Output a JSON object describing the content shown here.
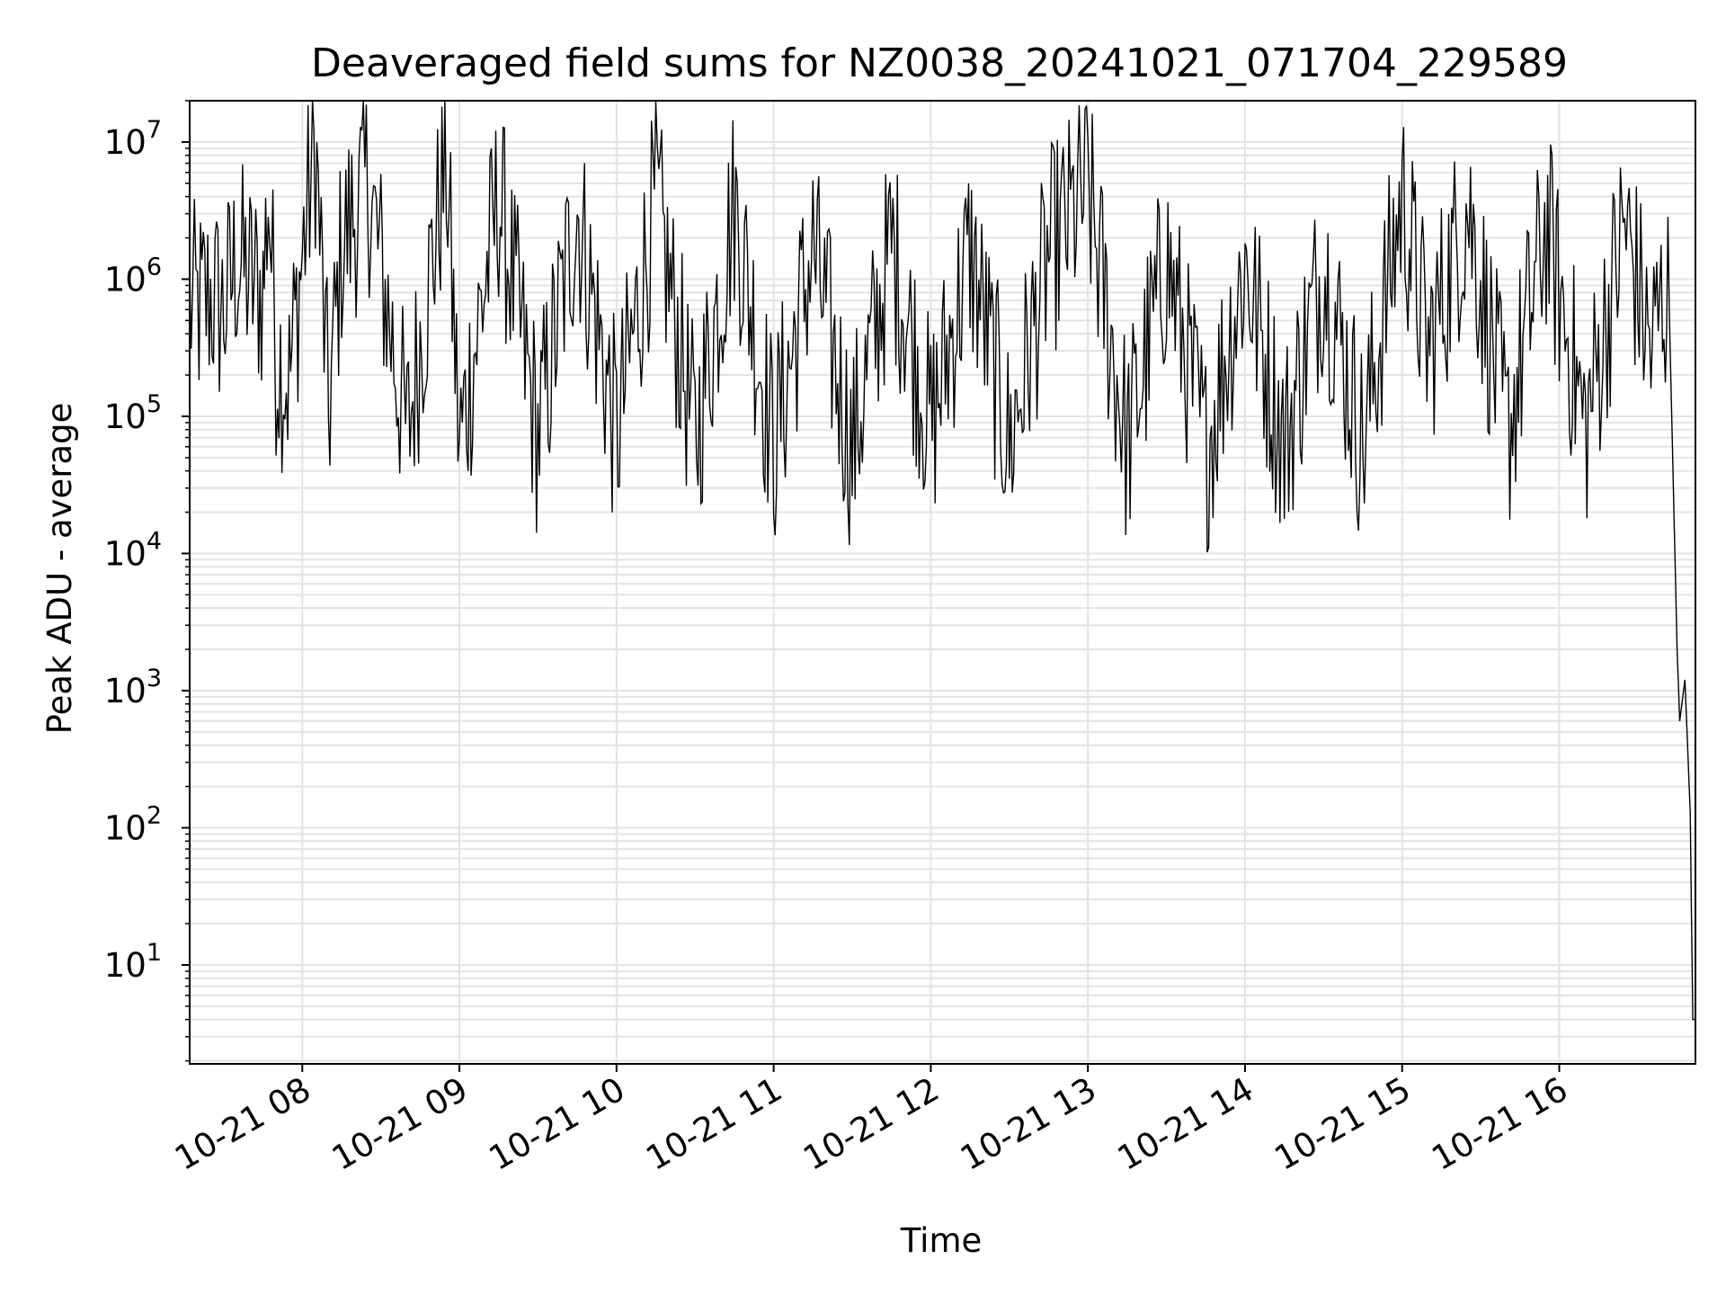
{
  "chart_data": {
    "type": "line",
    "title": "Deaveraged field sums for NZ0038_20241021_071704_229589",
    "xlabel": "Time",
    "ylabel": "Peak ADU - average",
    "x_tick_labels": [
      "10-21 08",
      "10-21 09",
      "10-21 10",
      "10-21 11",
      "10-21 12",
      "10-21 13",
      "10-21 14",
      "10-21 15",
      "10-21 16"
    ],
    "x_ticks": [
      "2024-10-21 08:00",
      "2024-10-21 09:00",
      "2024-10-21 10:00",
      "2024-10-21 11:00",
      "2024-10-21 12:00",
      "2024-10-21 13:00",
      "2024-10-21 14:00",
      "2024-10-21 15:00",
      "2024-10-21 16:00"
    ],
    "y_tick_labels": [
      {
        "base": "10",
        "exp": "1"
      },
      {
        "base": "10",
        "exp": "2"
      },
      {
        "base": "10",
        "exp": "3"
      },
      {
        "base": "10",
        "exp": "4"
      },
      {
        "base": "10",
        "exp": "5"
      },
      {
        "base": "10",
        "exp": "6"
      },
      {
        "base": "10",
        "exp": "7"
      }
    ],
    "y_scale": "log",
    "xlim": [
      "2024-10-21 07:17",
      "2024-10-21 16:52"
    ],
    "ylim": [
      1.9,
      20000000
    ],
    "grid": true,
    "grid_color": "#e3e3e3",
    "line_color": "#000000",
    "series": [
      {
        "points": [
          [
            "2024-10-21 07:17",
            650000
          ],
          [
            "2024-10-21 07:20",
            600000
          ],
          [
            "2024-10-21 07:25",
            750000
          ],
          [
            "2024-10-21 07:30",
            580000
          ],
          [
            "2024-10-21 07:35",
            1400000
          ],
          [
            "2024-10-21 07:40",
            1000000
          ],
          [
            "2024-10-21 07:45",
            800000
          ],
          [
            "2024-10-21 07:47",
            4400000
          ],
          [
            "2024-10-21 07:50",
            300000
          ],
          [
            "2024-10-21 07:55",
            180000
          ],
          [
            "2024-10-21 08:00",
            1500000
          ],
          [
            "2024-10-21 08:05",
            10000000
          ],
          [
            "2024-10-21 08:10",
            100000
          ],
          [
            "2024-10-21 08:15",
            1700000
          ],
          [
            "2024-10-21 08:25",
            5300000
          ],
          [
            "2024-10-21 08:40",
            70000
          ],
          [
            "2024-10-21 08:55",
            7300000
          ],
          [
            "2024-10-21 09:00",
            60000
          ],
          [
            "2024-10-21 09:15",
            4000000
          ],
          [
            "2024-10-21 09:30",
            70000
          ],
          [
            "2024-10-21 09:45",
            3200000
          ],
          [
            "2024-10-21 10:00",
            70000
          ],
          [
            "2024-10-21 10:15",
            3800000
          ],
          [
            "2024-10-21 10:30",
            65000
          ],
          [
            "2024-10-21 10:45",
            3600000
          ],
          [
            "2024-10-21 11:00",
            60000
          ],
          [
            "2024-10-21 11:15",
            1700000
          ],
          [
            "2024-10-21 11:30",
            55000
          ],
          [
            "2024-10-21 11:45",
            1800000
          ],
          [
            "2024-10-21 12:00",
            80000
          ],
          [
            "2024-10-21 12:15",
            1600000
          ],
          [
            "2024-10-21 12:30",
            60000
          ],
          [
            "2024-10-21 12:45",
            1500000
          ],
          [
            "2024-10-21 13:00",
            4400000
          ],
          [
            "2024-10-21 13:15",
            60000
          ],
          [
            "2024-10-21 13:30",
            1400000
          ],
          [
            "2024-10-21 13:45",
            55000
          ],
          [
            "2024-10-21 14:00",
            1300000
          ],
          [
            "2024-10-21 14:15",
            60000
          ],
          [
            "2024-10-21 14:30",
            1300000
          ],
          [
            "2024-10-21 14:45",
            60000
          ],
          [
            "2024-10-21 15:00",
            4000000
          ],
          [
            "2024-10-21 15:10",
            300000
          ],
          [
            "2024-10-21 15:25",
            3500000
          ],
          [
            "2024-10-21 15:40",
            70000
          ],
          [
            "2024-10-21 15:55",
            2500000
          ],
          [
            "2024-10-21 16:10",
            80000
          ],
          [
            "2024-10-21 16:25",
            2600000
          ],
          [
            "2024-10-21 16:35",
            300000
          ],
          [
            "2024-10-21 16:40",
            800000
          ],
          [
            "2024-10-21 16:42",
            600000
          ],
          [
            "2024-10-21 16:45",
            2000
          ],
          [
            "2024-10-21 16:46",
            600
          ],
          [
            "2024-10-21 16:48",
            1200
          ],
          [
            "2024-10-21 16:50",
            130
          ],
          [
            "2024-10-21 16:51",
            4
          ],
          [
            "2024-10-21 16:52",
            4
          ]
        ]
      }
    ]
  }
}
